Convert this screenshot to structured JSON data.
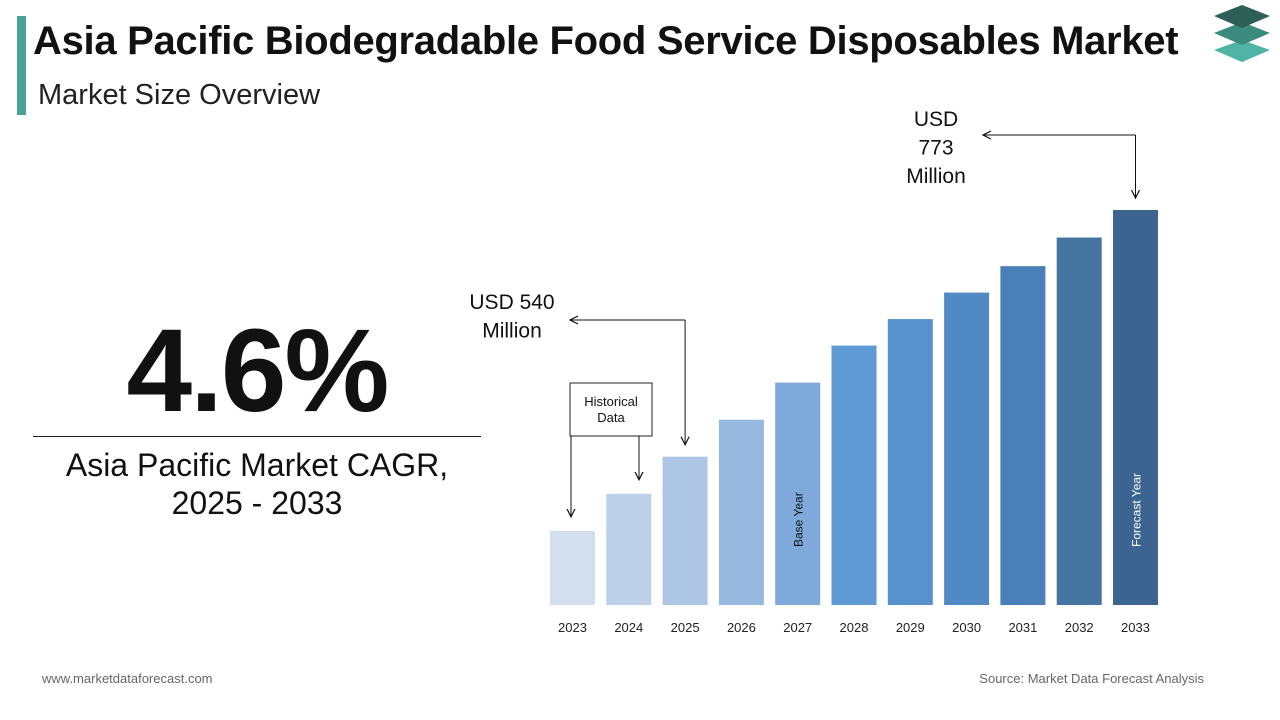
{
  "header": {
    "title": "Asia Pacific Biodegradable Food Service Disposables Market",
    "subtitle": "Market Size Overview"
  },
  "cagr": {
    "value": "4.6%",
    "label_line1": "Asia Pacific Market CAGR,",
    "label_line2": "2025 - 2033"
  },
  "footer": {
    "website": "www.marketdataforecast.com",
    "source": "Source: Market Data Forecast Analysis"
  },
  "chart_data": {
    "type": "bar",
    "title": "",
    "xlabel": "",
    "ylabel": "",
    "categories": [
      "2023",
      "2024",
      "2025",
      "2026",
      "2027",
      "2028",
      "2029",
      "2030",
      "2031",
      "2032",
      "2033"
    ],
    "values": [
      470,
      505,
      540,
      575,
      610,
      645,
      670,
      695,
      720,
      747,
      773
    ],
    "ylim": [
      400,
      800
    ],
    "bar_colors": [
      "#d3deee",
      "#bdd0e9",
      "#aec6e5",
      "#97b9e0",
      "#7fa9db",
      "#5f9ad5",
      "#5792cd",
      "#5089c4",
      "#4a80b8",
      "#44749f",
      "#3b6590"
    ],
    "bar_labels": {
      "2027": "Base Year",
      "2033": "Forecast Year"
    },
    "annotations": [
      {
        "year": "2025",
        "lines": [
          "USD 540",
          "Million"
        ]
      },
      {
        "year": "2033",
        "lines": [
          "USD",
          "773",
          "Million"
        ]
      }
    ],
    "historical_box": {
      "lines": [
        "Historical",
        "Data"
      ],
      "years": [
        "2023",
        "2024"
      ]
    }
  }
}
